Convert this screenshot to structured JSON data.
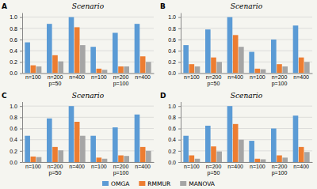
{
  "chart_data": [
    {
      "type": "bar",
      "title": "Scenario",
      "annotations": [
        "A"
      ],
      "categories": [
        "n=100",
        "n=200\np=50",
        "n=400",
        "n=100",
        "n=200\np=100",
        "n=400"
      ],
      "series": [
        {
          "name": "OMGA",
          "color": "#5B9BD5",
          "values": [
            0.55,
            0.88,
            1.0,
            0.47,
            0.72,
            0.88
          ]
        },
        {
          "name": "RMMUR",
          "color": "#ED7D31",
          "values": [
            0.14,
            0.32,
            0.82,
            0.08,
            0.12,
            0.3
          ]
        },
        {
          "name": "MANOVA",
          "color": "#A5A5A5",
          "values": [
            0.12,
            0.21,
            0.5,
            0.06,
            0.12,
            0.2
          ]
        }
      ],
      "ylim": [
        0,
        1.08
      ],
      "yticks": [
        {
          "value": 0,
          "label": "0.0"
        },
        0.2,
        0.4,
        0.6,
        0.8,
        {
          "value": 1.0,
          "label": "1.0"
        }
      ],
      "grid": true,
      "legend": "bottom"
    },
    {
      "type": "bar",
      "title": "Scenario",
      "annotations": [
        "B"
      ],
      "categories": [
        "n=100",
        "n=200\np=50",
        "n=400",
        "n=100",
        "n=200\np=100",
        "n=400"
      ],
      "series": [
        {
          "name": "OMGA",
          "color": "#5B9BD5",
          "values": [
            0.5,
            0.78,
            1.0,
            0.38,
            0.6,
            0.85
          ]
        },
        {
          "name": "RMMUR",
          "color": "#ED7D31",
          "values": [
            0.16,
            0.28,
            0.68,
            0.08,
            0.16,
            0.28
          ]
        },
        {
          "name": "MANOVA",
          "color": "#A5A5A5",
          "values": [
            0.12,
            0.2,
            0.47,
            0.07,
            0.12,
            0.2
          ]
        }
      ],
      "ylim": [
        0,
        1.08
      ],
      "yticks": [
        {
          "value": 0,
          "label": "0.0"
        },
        0.2,
        0.4,
        0.6,
        0.8,
        {
          "value": 1.0,
          "label": "1.0"
        }
      ],
      "grid": true
    },
    {
      "type": "bar",
      "title": "Scenario",
      "annotations": [
        "C"
      ],
      "categories": [
        "n=100",
        "n=200\np=50",
        "n=400",
        "n=100",
        "n=200\np=100",
        "n=400"
      ],
      "series": [
        {
          "name": "OMGA",
          "color": "#5B9BD5",
          "values": [
            0.47,
            0.78,
            1.0,
            0.47,
            0.62,
            0.85
          ]
        },
        {
          "name": "RMMUR",
          "color": "#ED7D31",
          "values": [
            0.1,
            0.27,
            0.72,
            0.08,
            0.12,
            0.27
          ]
        },
        {
          "name": "MANOVA",
          "color": "#A5A5A5",
          "values": [
            0.09,
            0.21,
            0.47,
            0.06,
            0.11,
            0.2
          ]
        }
      ],
      "ylim": [
        0,
        1.08
      ],
      "yticks": [
        {
          "value": 0,
          "label": "0.0"
        },
        0.2,
        0.4,
        0.6,
        0.8,
        {
          "value": 1.0,
          "label": "1.0"
        }
      ],
      "grid": true
    },
    {
      "type": "bar",
      "title": "Scenario",
      "annotations": [
        "D"
      ],
      "categories": [
        "n=100",
        "n=200\np=50",
        "n=400",
        "n=100",
        "n=200\np=100",
        "n=400"
      ],
      "series": [
        {
          "name": "OMGA",
          "color": "#5B9BD5",
          "values": [
            0.47,
            0.65,
            1.0,
            0.38,
            0.6,
            0.83
          ]
        },
        {
          "name": "RMMUR",
          "color": "#ED7D31",
          "values": [
            0.12,
            0.28,
            0.68,
            0.06,
            0.12,
            0.27
          ]
        },
        {
          "name": "MANOVA",
          "color": "#A5A5A5",
          "values": [
            0.06,
            0.19,
            0.4,
            0.05,
            0.08,
            0.18
          ]
        }
      ],
      "ylim": [
        0,
        1.08
      ],
      "yticks": [
        {
          "value": 0,
          "label": "0.0"
        },
        0.2,
        0.4,
        0.6,
        0.8,
        {
          "value": 1.0,
          "label": "1.0"
        }
      ],
      "grid": true
    }
  ]
}
